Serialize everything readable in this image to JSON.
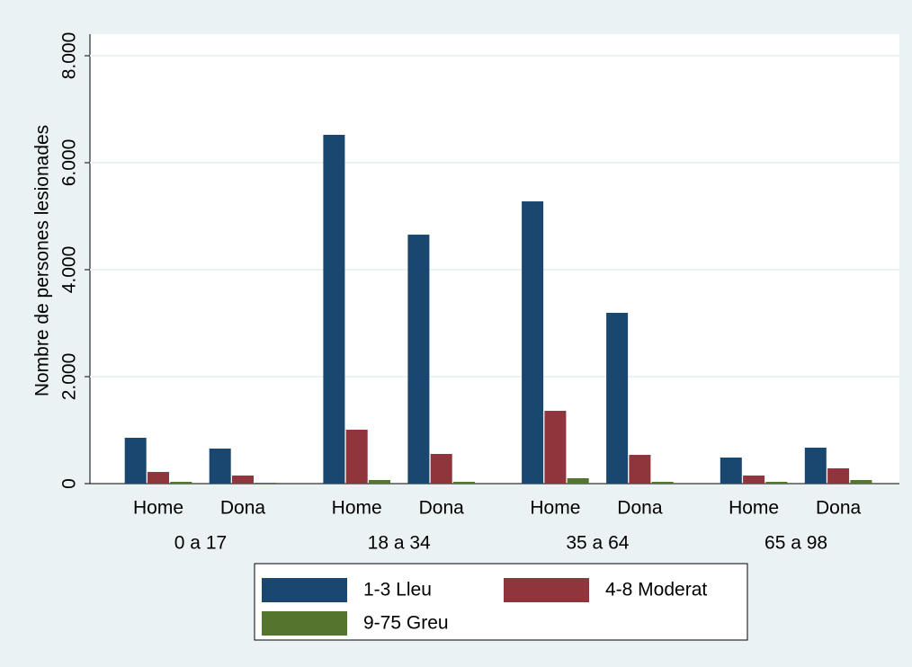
{
  "chart_data": {
    "type": "bar",
    "y_label": "Nombre de persones lesionades",
    "categories": [
      "Home",
      "Dona",
      "Home",
      "Dona",
      "Home",
      "Dona",
      "Home",
      "Dona"
    ],
    "groups": [
      "0 a 17",
      "18 a 34",
      "35 a 64",
      "65 a 98"
    ],
    "series": [
      {
        "name": "1-3 Lleu",
        "color": "#1a476f",
        "values": [
          857,
          655,
          6521,
          4655,
          5277,
          3193,
          487,
          672
        ]
      },
      {
        "name": "4-8 Moderat",
        "color": "#90353b",
        "values": [
          218,
          151,
          1008,
          555,
          1361,
          538,
          151,
          286
        ]
      },
      {
        "name": "9-75 Greu",
        "color": "#55752f",
        "values": [
          34,
          17,
          67,
          34,
          101,
          34,
          34,
          67
        ]
      }
    ],
    "ylim": [
      0,
      8000
    ],
    "yticks": [
      0,
      {
        "value": 2000,
        "label": "2.000"
      },
      {
        "value": 4000,
        "label": "4.000"
      },
      {
        "value": 6000,
        "label": "6.000"
      },
      {
        "value": 8000,
        "label": "8.000"
      }
    ],
    "grid": true
  }
}
